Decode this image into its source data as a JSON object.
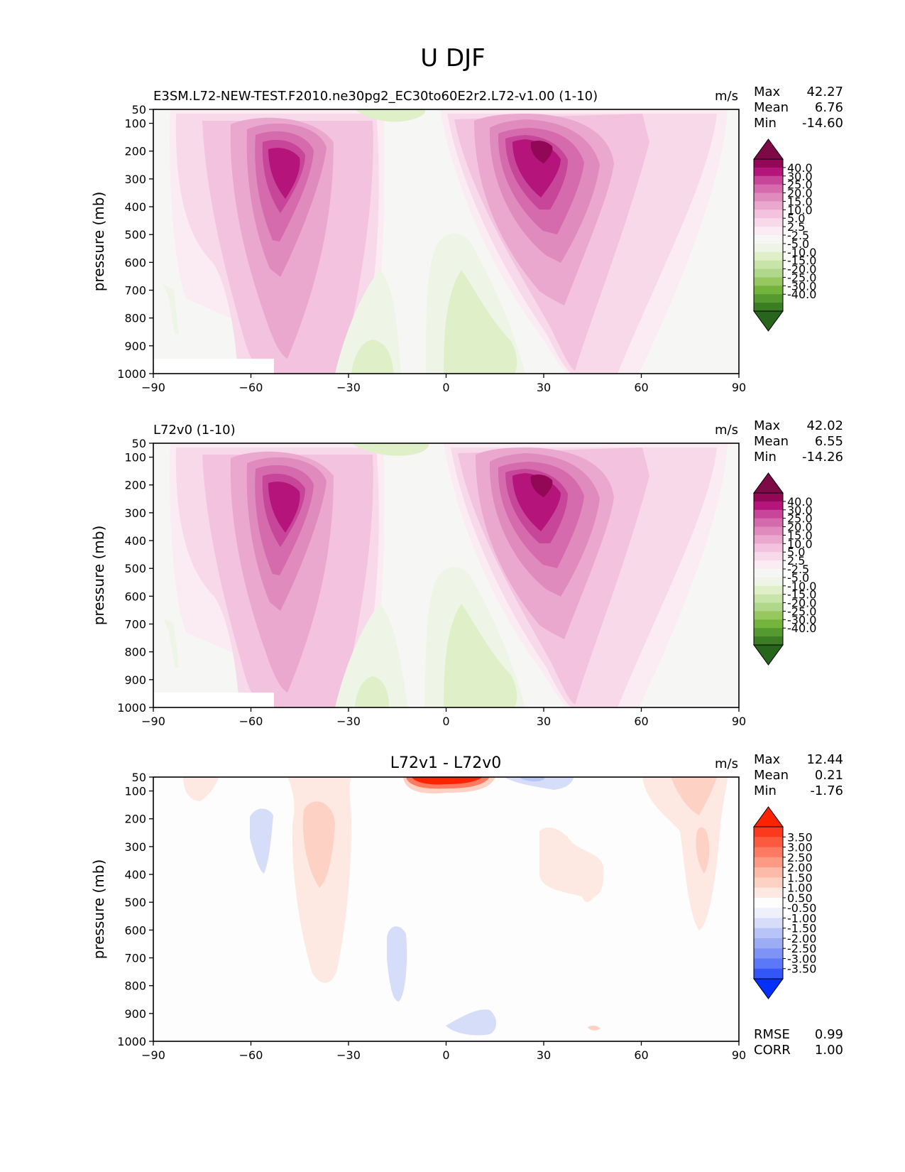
{
  "figure": {
    "title": "U DJF"
  },
  "colors": {
    "top_scale": [
      "#27641c",
      "#3a7d23",
      "#559a2f",
      "#73b43d",
      "#97c85f",
      "#b1d88a",
      "#c9e4a9",
      "#dff0c9",
      "#eef5e6",
      "#f6f6f4",
      "#fbebf3",
      "#f8d9ea",
      "#f3c2de",
      "#eba8cf",
      "#e08bbd",
      "#d56aac",
      "#c7469a",
      "#b5157a",
      "#930856",
      "#7d0a47"
    ],
    "diff_scale": [
      "#0530fb",
      "#3356f9",
      "#5a78f7",
      "#7e93f6",
      "#9cadf6",
      "#b8c4f7",
      "#d5ddf9",
      "#eef1fb",
      "#fdfdfd",
      "#fde8e2",
      "#fdd2c5",
      "#fcbba8",
      "#fc9a84",
      "#fc7a62",
      "#fc5a3f",
      "#fb3a1d",
      "#fd2200"
    ],
    "panel_background": "#f6f6f4",
    "diff_background": "#fdfdfd"
  },
  "panels": [
    {
      "title_left": "E3SM.L72-NEW-TEST.F2010.ne30pg2_EC30to60E2r2.L72-v1.00 (1-10)",
      "title_center": "",
      "units": "m/s",
      "stats": [
        {
          "label": "Max",
          "value": "42.27"
        },
        {
          "label": "Mean",
          "value": "6.76"
        },
        {
          "label": "Min",
          "value": "-14.60"
        }
      ],
      "colorbar_labels": [
        "40.0",
        "30.0",
        "25.0",
        "20.0",
        "15.0",
        "10.0",
        "5.0",
        "2.5",
        "-2.5",
        "-5.0",
        "-10.0",
        "-15.0",
        "-20.0",
        "-25.0",
        "-30.0",
        "-40.0"
      ],
      "extra_stats": []
    },
    {
      "title_left": "L72v0 (1-10)",
      "title_center": "",
      "units": "m/s",
      "stats": [
        {
          "label": "Max",
          "value": "42.02"
        },
        {
          "label": "Mean",
          "value": "6.55"
        },
        {
          "label": "Min",
          "value": "-14.26"
        }
      ],
      "colorbar_labels": [
        "40.0",
        "30.0",
        "25.0",
        "20.0",
        "15.0",
        "10.0",
        "5.0",
        "2.5",
        "-2.5",
        "-5.0",
        "-10.0",
        "-15.0",
        "-20.0",
        "-25.0",
        "-30.0",
        "-40.0"
      ],
      "extra_stats": []
    },
    {
      "title_left": "",
      "title_center": "L72v1 - L72v0",
      "units": "m/s",
      "stats": [
        {
          "label": "Max",
          "value": "12.44"
        },
        {
          "label": "Mean",
          "value": "0.21"
        },
        {
          "label": "Min",
          "value": "-1.76"
        }
      ],
      "colorbar_labels": [
        "3.50",
        "3.00",
        "2.50",
        "2.00",
        "1.50",
        "1.00",
        "0.50",
        "-0.50",
        "-1.00",
        "-1.50",
        "-2.00",
        "-2.50",
        "-3.00",
        "-3.50"
      ],
      "extra_stats": [
        {
          "label": "RMSE",
          "value": "0.99"
        },
        {
          "label": "CORR",
          "value": "1.00"
        }
      ]
    }
  ],
  "chart_data": [
    {
      "type": "heatmap",
      "title": "E3SM.L72-NEW-TEST.F2010.ne30pg2_EC30to60E2r2.L72-v1.00 (1-10)",
      "units": "m/s",
      "xlabel": "",
      "ylabel": "pressure (mb)",
      "xticks": [
        "−90",
        "−60",
        "−30",
        "0",
        "30",
        "60",
        "90"
      ],
      "yticks": [
        "50",
        "100",
        "200",
        "300",
        "400",
        "500",
        "600",
        "700",
        "800",
        "900",
        "1000"
      ],
      "xlim": [
        -90,
        90
      ],
      "ylim": [
        1000,
        50
      ],
      "levels": [
        -40,
        -30,
        -25,
        -20,
        -15,
        -10,
        -5,
        -2.5,
        2.5,
        5,
        10,
        15,
        20,
        25,
        30,
        40
      ],
      "features": [
        {
          "x": -48,
          "p": 270,
          "value": 35
        },
        {
          "x": 30,
          "p": 220,
          "value": 40
        },
        {
          "x": 8,
          "p": 800,
          "value": -7
        },
        {
          "x": -20,
          "p": 960,
          "value": -7
        },
        {
          "x": -12,
          "p": 60,
          "value": -6
        }
      ],
      "stats": {
        "max": 42.27,
        "mean": 6.76,
        "min": -14.6
      }
    },
    {
      "type": "heatmap",
      "title": "L72v0 (1-10)",
      "units": "m/s",
      "xlabel": "",
      "ylabel": "pressure (mb)",
      "xticks": [
        "−90",
        "−60",
        "−30",
        "0",
        "30",
        "60",
        "90"
      ],
      "yticks": [
        "50",
        "100",
        "200",
        "300",
        "400",
        "500",
        "600",
        "700",
        "800",
        "900",
        "1000"
      ],
      "xlim": [
        -90,
        90
      ],
      "ylim": [
        1000,
        50
      ],
      "levels": [
        -40,
        -30,
        -25,
        -20,
        -15,
        -10,
        -5,
        -2.5,
        2.5,
        5,
        10,
        15,
        20,
        25,
        30,
        40
      ],
      "features": [
        {
          "x": -48,
          "p": 270,
          "value": 35
        },
        {
          "x": 30,
          "p": 220,
          "value": 40
        },
        {
          "x": 8,
          "p": 800,
          "value": -7
        },
        {
          "x": -20,
          "p": 960,
          "value": -7
        },
        {
          "x": -12,
          "p": 60,
          "value": -6
        }
      ],
      "stats": {
        "max": 42.02,
        "mean": 6.55,
        "min": -14.26
      }
    },
    {
      "type": "heatmap",
      "title": "L72v1 - L72v0",
      "units": "m/s",
      "xlabel": "",
      "ylabel": "pressure (mb)",
      "xticks": [
        "−90",
        "−60",
        "−30",
        "0",
        "30",
        "60",
        "90"
      ],
      "yticks": [
        "50",
        "100",
        "200",
        "300",
        "400",
        "500",
        "600",
        "700",
        "800",
        "900",
        "1000"
      ],
      "xlim": [
        -90,
        90
      ],
      "ylim": [
        1000,
        50
      ],
      "levels": [
        -3.5,
        -3,
        -2.5,
        -2,
        -1.5,
        -1,
        -0.5,
        0.5,
        1,
        1.5,
        2,
        2.5,
        3,
        3.5
      ],
      "features": [
        {
          "x": 2,
          "p": 60,
          "value": 4
        },
        {
          "x": -37,
          "p": 280,
          "value": 1.8
        },
        {
          "x": 81,
          "p": 300,
          "value": 1.8
        },
        {
          "x": 76,
          "p": 100,
          "value": 1.5
        },
        {
          "x": -55,
          "p": 270,
          "value": -0.7
        },
        {
          "x": -15,
          "p": 700,
          "value": -0.7
        },
        {
          "x": 8,
          "p": 940,
          "value": -0.7
        },
        {
          "x": 30,
          "p": 80,
          "value": -0.7
        }
      ],
      "stats": {
        "max": 12.44,
        "mean": 0.21,
        "min": -1.76,
        "rmse": 0.99,
        "corr": 1.0
      }
    }
  ]
}
